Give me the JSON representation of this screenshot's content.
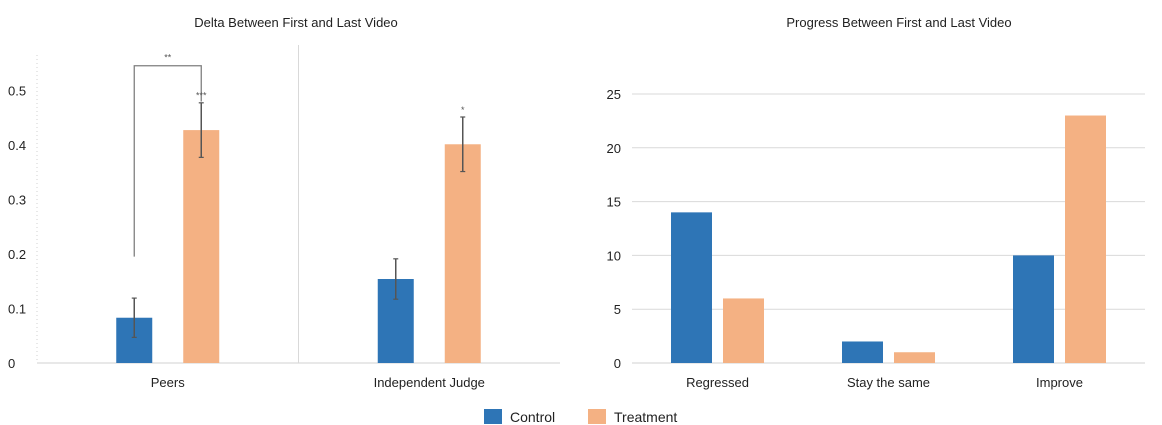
{
  "colors": {
    "control": "#2E75B6",
    "treatment": "#F4B183",
    "axis": "#D0D0D0",
    "grid": "#D9D9D9",
    "errorbar": "#555555",
    "bracket": "#7F7F7F"
  },
  "legend": [
    {
      "name": "Control",
      "color": "#2E75B6"
    },
    {
      "name": "Treatment",
      "color": "#F4B183"
    }
  ],
  "chart_data": [
    {
      "type": "bar",
      "title": "Delta Between First and Last Video",
      "categories": [
        "Peers",
        "Independent Judge"
      ],
      "series": [
        {
          "name": "Control",
          "values": [
            0.083,
            0.154
          ],
          "error": [
            0.036,
            0.037
          ]
        },
        {
          "name": "Treatment",
          "values": [
            0.427,
            0.401
          ],
          "error": [
            0.05,
            0.05
          ]
        }
      ],
      "ylim": [
        0,
        0.55
      ],
      "yticks": [
        0,
        0.1,
        0.2,
        0.3,
        0.4,
        0.5
      ],
      "ytick_labels": [
        "0",
        "0.1",
        "0.2",
        "0.3",
        "0.4",
        "0.5"
      ],
      "grid": false,
      "annotations": [
        {
          "text": "**",
          "type": "bracket",
          "between": [
            "Peers Control",
            "Peers Treatment"
          ],
          "y_low": 0.195,
          "y_high": 0.545
        },
        {
          "text": "***",
          "type": "star",
          "category": "Peers",
          "series": "Treatment",
          "y": 0.485
        },
        {
          "text": "*",
          "type": "star",
          "category": "Independent Judge",
          "series": "Treatment",
          "y": 0.458
        }
      ],
      "legend": "bottom-center"
    },
    {
      "type": "bar",
      "title": "Progress Between First and Last Video",
      "categories": [
        "Regressed",
        "Stay the same",
        "Improve"
      ],
      "series": [
        {
          "name": "Control",
          "values": [
            14,
            2,
            10
          ]
        },
        {
          "name": "Treatment",
          "values": [
            6,
            1,
            23
          ]
        }
      ],
      "ylim": [
        0,
        25
      ],
      "yticks": [
        0,
        5,
        10,
        15,
        20,
        25
      ],
      "ytick_labels": [
        "0",
        "5",
        "10",
        "15",
        "20",
        "25"
      ],
      "grid": true,
      "legend": "bottom-center"
    }
  ]
}
